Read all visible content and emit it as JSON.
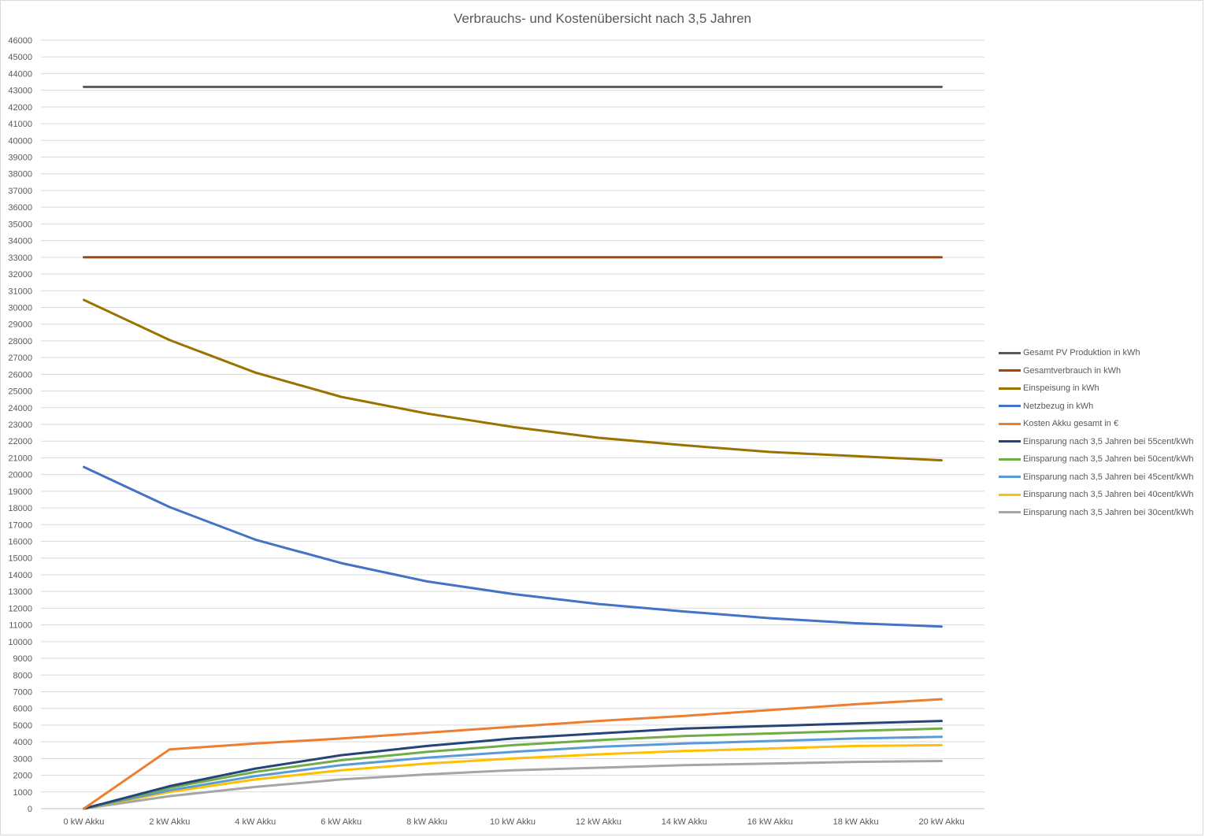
{
  "chart_data": {
    "type": "line",
    "title": "Verbrauchs- und Kostenübersicht nach 3,5 Jahren",
    "categories": [
      "0 kW Akku",
      "2 kW Akku",
      "4 kW Akku",
      "6 kW Akku",
      "8 kW Akku",
      "10 kW Akku",
      "12 kW Akku",
      "14 kW Akku",
      "16 kW Akku",
      "18 kW Akku",
      "20 kW Akku"
    ],
    "ylim": [
      0,
      46000
    ],
    "ytick_step": 1000,
    "grid": true,
    "legend_position": "right",
    "series": [
      {
        "name": "Gesamt PV Produktion in kWh",
        "color": "#595959",
        "values": [
          43200,
          43200,
          43200,
          43200,
          43200,
          43200,
          43200,
          43200,
          43200,
          43200,
          43200
        ]
      },
      {
        "name": "Gesamtverbrauch in kWh",
        "color": "#9e480e",
        "values": [
          33000,
          33000,
          33000,
          33000,
          33000,
          33000,
          33000,
          33000,
          33000,
          33000,
          33000
        ]
      },
      {
        "name": "Einspeisung in kWh",
        "color": "#997300",
        "values": [
          30450,
          28050,
          26100,
          24650,
          23650,
          22850,
          22200,
          21750,
          21350,
          21100,
          20850
        ]
      },
      {
        "name": "Netzbezug in kWh",
        "color": "#4472c4",
        "values": [
          20450,
          18050,
          16100,
          14700,
          13600,
          12850,
          12250,
          11800,
          11400,
          11100,
          10900
        ]
      },
      {
        "name": "Kosten Akku gesamt in €",
        "color": "#ed7d31",
        "values": [
          0,
          3550,
          3900,
          4200,
          4550,
          4900,
          5250,
          5550,
          5900,
          6250,
          6550
        ]
      },
      {
        "name": "Einsparung nach 3,5 Jahren bei 55cent/kWh",
        "color": "#264478",
        "values": [
          0,
          1350,
          2400,
          3200,
          3750,
          4200,
          4500,
          4800,
          4950,
          5100,
          5250
        ]
      },
      {
        "name": "Einsparung nach 3,5 Jahren bei 50cent/kWh",
        "color": "#70ad47",
        "values": [
          0,
          1250,
          2200,
          2900,
          3400,
          3800,
          4100,
          4350,
          4500,
          4650,
          4800
        ]
      },
      {
        "name": "Einsparung nach 3,5 Jahren bei 45cent/kWh",
        "color": "#5b9bd5",
        "values": [
          0,
          1100,
          1950,
          2600,
          3050,
          3400,
          3700,
          3900,
          4050,
          4200,
          4300
        ]
      },
      {
        "name": "Einsparung nach 3,5 Jahren bei 40cent/kWh",
        "color": "#ffc000",
        "values": [
          0,
          1000,
          1750,
          2300,
          2700,
          3000,
          3250,
          3450,
          3600,
          3750,
          3800
        ]
      },
      {
        "name": "Einsparung nach 3,5 Jahren bei 30cent/kWh",
        "color": "#a5a5a5",
        "values": [
          0,
          750,
          1300,
          1750,
          2050,
          2300,
          2450,
          2600,
          2700,
          2800,
          2850
        ]
      }
    ]
  }
}
